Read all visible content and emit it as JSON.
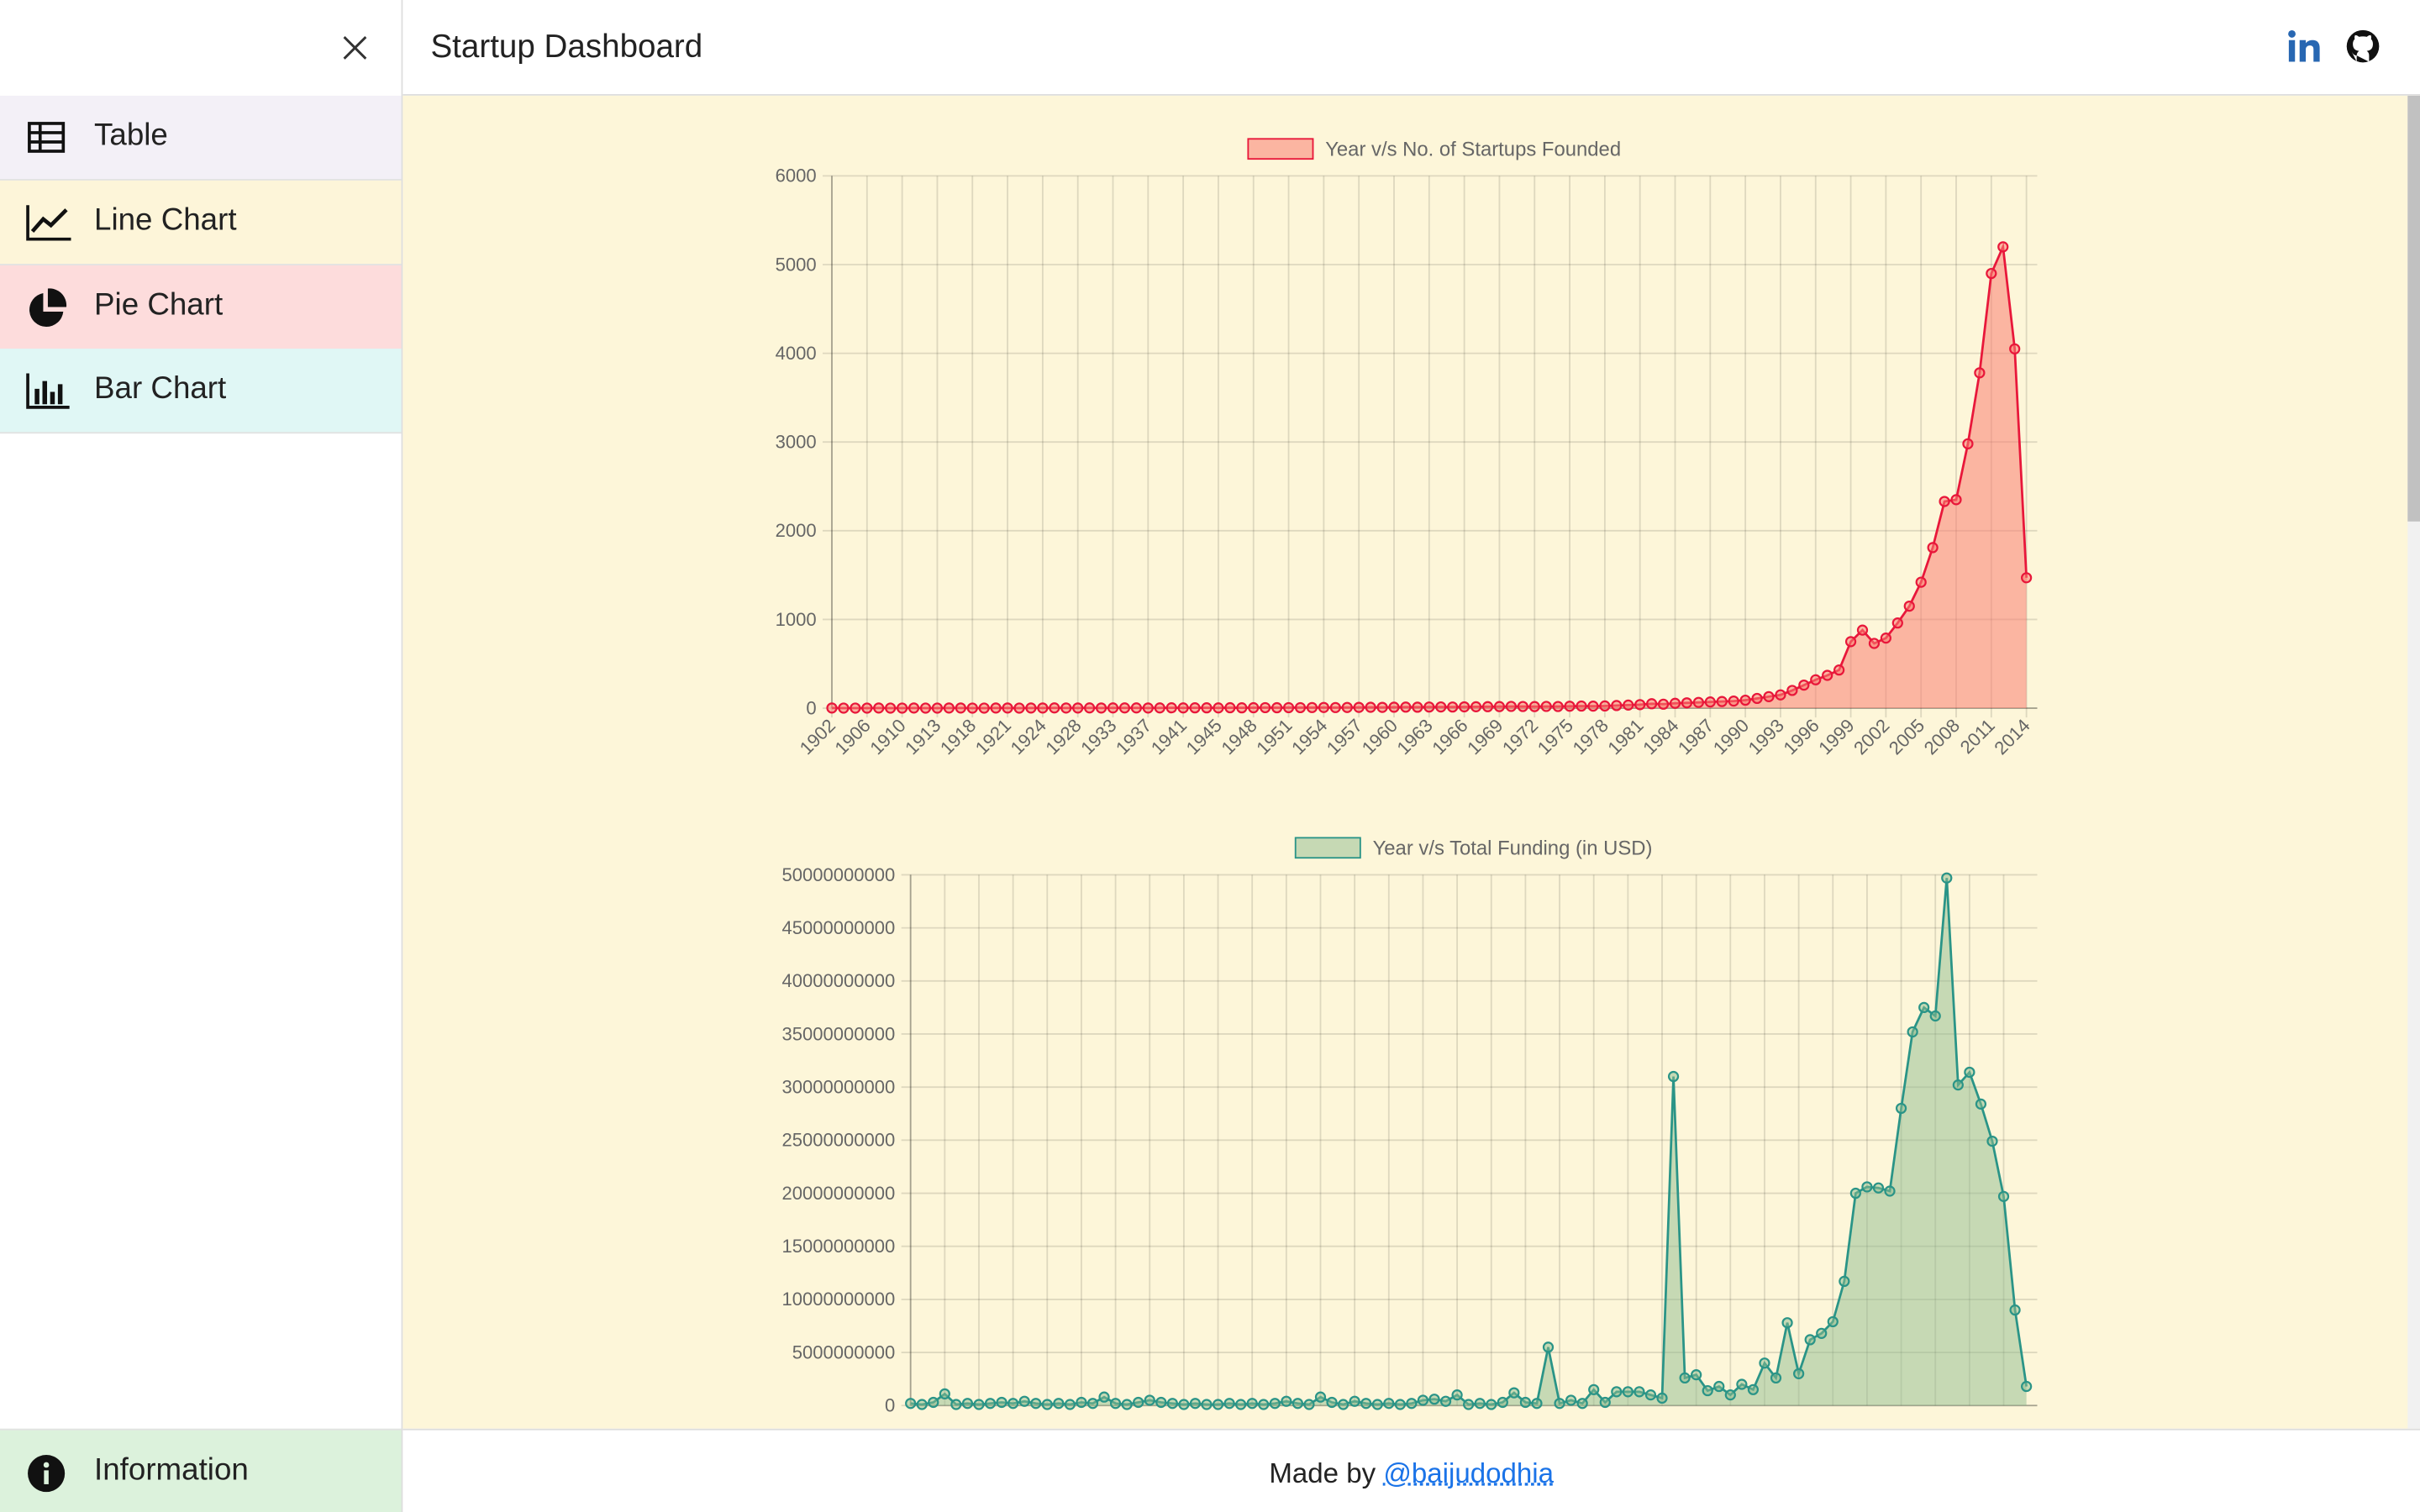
{
  "header": {
    "title": "Startup Dashboard"
  },
  "sidebar": {
    "items": [
      {
        "label": "Table"
      },
      {
        "label": "Line Chart"
      },
      {
        "label": "Pie Chart"
      },
      {
        "label": "Bar Chart"
      }
    ],
    "bottom": "Information"
  },
  "footer": {
    "text": "Made by",
    "link": "@baijudodhia"
  },
  "chart_data": [
    {
      "type": "line",
      "categories": [
        "1902",
        null,
        null,
        "1906",
        null,
        null,
        "1910",
        null,
        null,
        "1913",
        null,
        null,
        "1918",
        null,
        null,
        "1921",
        null,
        null,
        "1924",
        null,
        null,
        "1928",
        null,
        null,
        "1933",
        null,
        null,
        "1937",
        null,
        null,
        "1941",
        null,
        null,
        "1945",
        null,
        null,
        "1948",
        null,
        null,
        "1951",
        null,
        null,
        "1954",
        null,
        null,
        "1957",
        null,
        null,
        "1960",
        null,
        null,
        "1963",
        null,
        null,
        "1966",
        null,
        null,
        "1969",
        null,
        null,
        "1972",
        null,
        null,
        "1975",
        null,
        null,
        "1978",
        null,
        null,
        "1981",
        null,
        null,
        "1984",
        null,
        null,
        "1987",
        null,
        null,
        "1990",
        null,
        null,
        "1993",
        null,
        null,
        "1996",
        null,
        null,
        "1999",
        null,
        null,
        "2002",
        null,
        null,
        "2005",
        null,
        null,
        "2008",
        null,
        null,
        "2011",
        null,
        null,
        "2014"
      ],
      "series": [
        {
          "name": "Year v/s No. of Startups Founded",
          "color": "#e8173a",
          "fill": "rgba(250,128,114,0.55)",
          "values": [
            2,
            1,
            1,
            1,
            2,
            1,
            1,
            2,
            1,
            1,
            2,
            2,
            1,
            1,
            2,
            2,
            1,
            2,
            2,
            3,
            2,
            2,
            3,
            2,
            3,
            3,
            3,
            2,
            3,
            4,
            3,
            4,
            4,
            3,
            5,
            4,
            5,
            6,
            5,
            6,
            6,
            7,
            8,
            7,
            8,
            9,
            10,
            9,
            11,
            12,
            11,
            13,
            14,
            13,
            15,
            16,
            17,
            18,
            20,
            19,
            18,
            20,
            19,
            22,
            24,
            23,
            25,
            30,
            35,
            40,
            50,
            45,
            55,
            60,
            65,
            70,
            75,
            80,
            90,
            110,
            130,
            150,
            200,
            260,
            320,
            370,
            430,
            750,
            880,
            730,
            790,
            960,
            1150,
            1420,
            1810,
            2330,
            2350,
            2980,
            3780,
            4900,
            5200,
            4050,
            1470
          ]
        }
      ],
      "ylim": [
        0,
        6000
      ],
      "yticks": [
        0,
        1000,
        2000,
        3000,
        4000,
        5000,
        6000
      ],
      "grid": true
    },
    {
      "type": "line",
      "categories": [
        null,
        null,
        null,
        null,
        null,
        null,
        null,
        null,
        null,
        null,
        null,
        null,
        null,
        null,
        null,
        null,
        null,
        null,
        null,
        null,
        null,
        null,
        null,
        null,
        null,
        null,
        null,
        null,
        null,
        null,
        null,
        null,
        null,
        null,
        null,
        null,
        null,
        null,
        null,
        null,
        null,
        null,
        null,
        null,
        null,
        null,
        null,
        null,
        null,
        null,
        null,
        null,
        null,
        null,
        null,
        null,
        null,
        null,
        null,
        null,
        null,
        null,
        null,
        null,
        null,
        null,
        null,
        null,
        null,
        null,
        null,
        null,
        null,
        null,
        null,
        null,
        null,
        null,
        null,
        null,
        null,
        null,
        null,
        null,
        null,
        null,
        null,
        null,
        null,
        null,
        null,
        null,
        null,
        null,
        null,
        null,
        null,
        null,
        null
      ],
      "series": [
        {
          "name": "Year v/s Total Funding (in USD)",
          "color": "#2a9487",
          "fill": "rgba(143,188,143,0.5)",
          "values": [
            200000000.0,
            100000000.0,
            300000000.0,
            1100000000.0,
            100000000.0,
            200000000.0,
            100000000.0,
            200000000.0,
            300000000.0,
            200000000.0,
            400000000.0,
            200000000.0,
            100000000.0,
            200000000.0,
            100000000.0,
            300000000.0,
            200000000.0,
            800000000.0,
            200000000.0,
            100000000.0,
            300000000.0,
            500000000.0,
            300000000.0,
            200000000.0,
            100000000.0,
            200000000.0,
            100000000.0,
            100000000.0,
            200000000.0,
            100000000.0,
            200000000.0,
            100000000.0,
            200000000.0,
            400000000.0,
            200000000.0,
            100000000.0,
            800000000.0,
            300000000.0,
            100000000.0,
            400000000.0,
            200000000.0,
            100000000.0,
            200000000.0,
            100000000.0,
            200000000.0,
            500000000.0,
            600000000.0,
            400000000.0,
            1000000000.0,
            100000000.0,
            200000000.0,
            100000000.0,
            300000000.0,
            1200000000.0,
            300000000.0,
            200000000.0,
            5500000000.0,
            200000000.0,
            500000000.0,
            200000000.0,
            1500000000.0,
            300000000.0,
            1300000000.0,
            1300000000.0,
            1300000000.0,
            1000000000.0,
            700000000.0,
            31000000000.0,
            2600000000.0,
            2900000000.0,
            1400000000.0,
            1800000000.0,
            1000000000.0,
            2000000000.0,
            1500000000.0,
            4000000000.0,
            2600000000.0,
            7800000000.0,
            3000000000.0,
            6200000000.0,
            6800000000.0,
            7900000000.0,
            11700000000.0,
            20000000000.0,
            20600000000.0,
            20500000000.0,
            20200000000.0,
            28000000000.0,
            35200000000.0,
            37500000000.0,
            36700000000.0,
            49700000000.0,
            30200000000.0,
            31400000000.0,
            28400000000.0,
            24900000000.0,
            19700000000.0,
            9000000000.0,
            1800000000.0
          ]
        }
      ],
      "ylim": [
        0,
        50000000000
      ],
      "yticks": [
        0,
        5000000000,
        10000000000,
        15000000000,
        20000000000,
        25000000000,
        30000000000,
        35000000000,
        40000000000,
        45000000000,
        50000000000
      ],
      "grid": true
    }
  ]
}
